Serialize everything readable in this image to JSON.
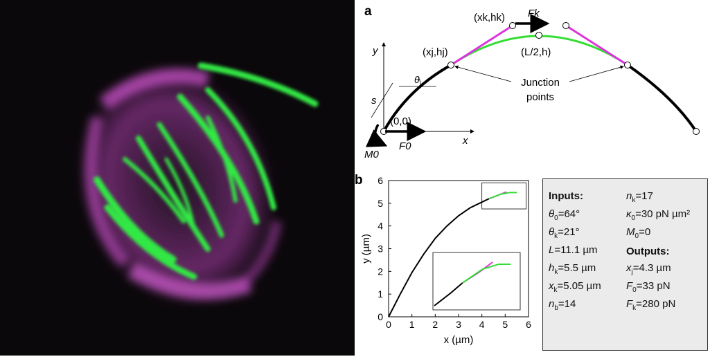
{
  "panel_a": {
    "letter": "a",
    "label_xk_hk": "(xk,hk)",
    "label_Fk": "Fk",
    "label_xj_hj": "(xj,hj)",
    "label_L2_h": "(L/2,h)",
    "label_y": "y",
    "label_theta": "θ",
    "label_s": "s",
    "label_origin": "(0,0)",
    "label_x": "x",
    "label_M0": "M0",
    "label_F0": "F0",
    "junction_line1": "Junction",
    "junction_line2": "points",
    "colors": {
      "black": "#000000",
      "green": "#33dd33",
      "magenta": "#dd33dd"
    }
  },
  "panel_b": {
    "letter": "b",
    "chart_data": {
      "type": "line",
      "xlabel": "x (µm)",
      "ylabel": "y (µm)",
      "xlim": [
        0,
        6
      ],
      "ylim": [
        0,
        6
      ],
      "xticks": [
        "0",
        "1",
        "2",
        "3",
        "4",
        "5",
        "6"
      ],
      "yticks": [
        "0",
        "1",
        "2",
        "3",
        "4",
        "5",
        "6"
      ],
      "series": [
        {
          "color": "#000000",
          "points": [
            [
              0,
              0
            ],
            [
              0.5,
              1.0
            ],
            [
              1,
              1.95
            ],
            [
              1.5,
              2.75
            ],
            [
              2,
              3.45
            ],
            [
              2.5,
              4.0
            ],
            [
              3,
              4.45
            ],
            [
              3.5,
              4.8
            ],
            [
              4,
              5.05
            ],
            [
              4.3,
              5.2
            ]
          ]
        },
        {
          "color": "#dd33dd",
          "points": [
            [
              4.3,
              5.2
            ],
            [
              4.7,
              5.35
            ],
            [
              5.05,
              5.5
            ]
          ]
        },
        {
          "color": "#33dd33",
          "points": [
            [
              4.3,
              5.2
            ],
            [
              4.8,
              5.4
            ],
            [
              5.2,
              5.47
            ],
            [
              5.5,
              5.47
            ]
          ]
        }
      ]
    }
  },
  "table": {
    "inputs_title": "Inputs:",
    "outputs_title": "Outputs:",
    "rows_left": [
      {
        "sym": "θ",
        "sub": "0",
        "val": "=64°"
      },
      {
        "sym": "θ",
        "sub": "k",
        "val": "=21°"
      },
      {
        "sym": "L",
        "sub": "",
        "val": "=11.1 µm"
      },
      {
        "sym": "h",
        "sub": "k",
        "val": "=5.5 µm"
      },
      {
        "sym": "x",
        "sub": "k",
        "val": "=5.05 µm"
      },
      {
        "sym": "n",
        "sub": "b",
        "val": "=14"
      }
    ],
    "rows_right": [
      {
        "sym": "n",
        "sub": "k",
        "val": "=17"
      },
      {
        "sym": "κ",
        "sub": "0",
        "val": "=30 pN µm²"
      },
      {
        "sym": "M",
        "sub": "0",
        "val": "=0"
      },
      {
        "sym": "x",
        "sub": "j",
        "val": "=4.3 µm"
      },
      {
        "sym": "F",
        "sub": "0",
        "val": "=33 pN"
      },
      {
        "sym": "F",
        "sub": "k",
        "val": "=280 pN"
      }
    ]
  }
}
